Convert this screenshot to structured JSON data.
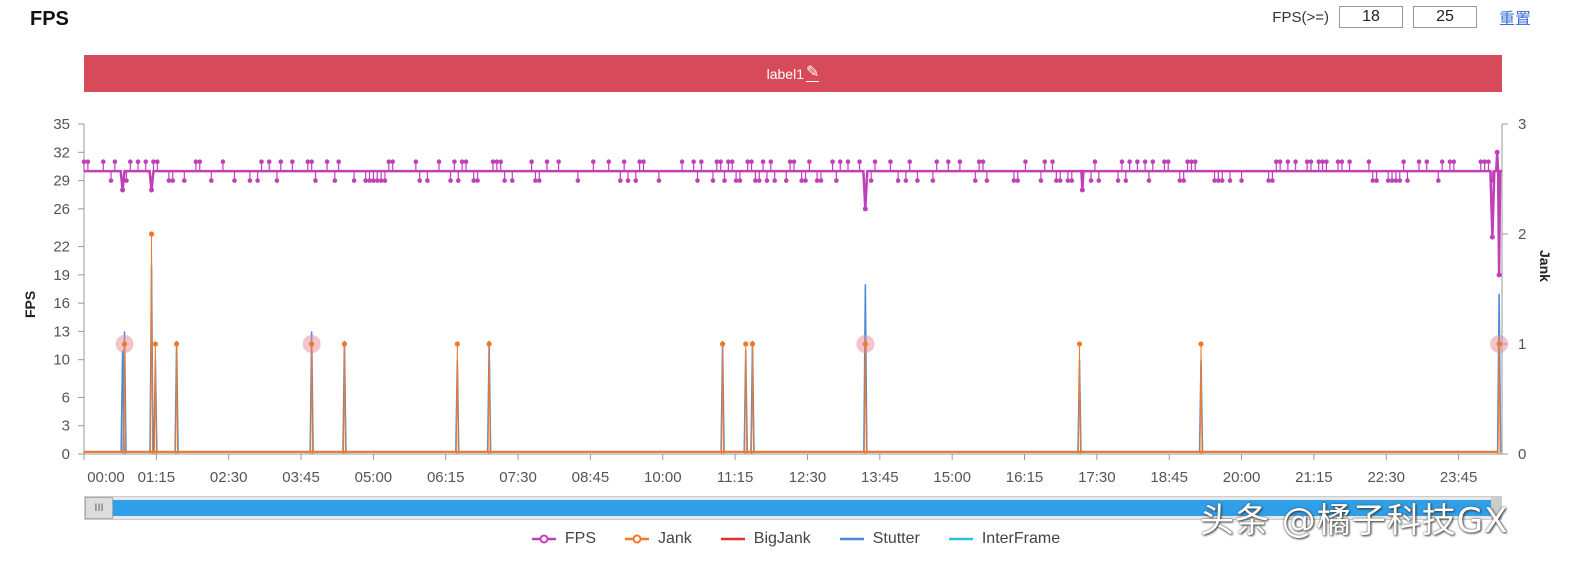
{
  "header": {
    "title": "FPS",
    "threshold_label": "FPS(>=)",
    "threshold_low": "18",
    "threshold_high": "25",
    "reset_label": "重置"
  },
  "label_bar": {
    "text": "label1",
    "color": "#d64a59",
    "icon": "pencil-icon"
  },
  "watermark": "头条 @橘子科技GX",
  "scroll_handle_glyph": "III",
  "chart_data": {
    "type": "line",
    "title": "FPS",
    "ylabel": "FPS",
    "y2label": "Jank",
    "ylim": [
      0,
      35
    ],
    "y2lim": [
      0,
      3
    ],
    "yticks": [
      0,
      3,
      6,
      10,
      13,
      16,
      19,
      22,
      26,
      29,
      32,
      35
    ],
    "y2ticks": [
      0,
      1,
      2,
      3
    ],
    "xlim_minutes": [
      0,
      1470
    ],
    "xtick_labels": [
      "00:00",
      "01:15",
      "02:30",
      "03:45",
      "05:00",
      "06:15",
      "07:30",
      "08:45",
      "10:00",
      "11:15",
      "12:30",
      "13:45",
      "15:00",
      "16:15",
      "17:30",
      "18:45",
      "20:00",
      "21:15",
      "22:30",
      "23:45"
    ],
    "legend": [
      "FPS",
      "Jank",
      "BigJank",
      "Stutter",
      "InterFrame"
    ],
    "colors": {
      "FPS": "#c040b8",
      "Jank": "#f07a2a",
      "BigJank": "#e03030",
      "Stutter": "#4a8ad8",
      "InterFrame": "#2ec0e0"
    },
    "fps_baseline": 30,
    "fps_dips": [
      {
        "t": 40,
        "fps": 28
      },
      {
        "t": 70,
        "fps": 28
      },
      {
        "t": 810,
        "fps": 26
      },
      {
        "t": 1035,
        "fps": 28
      },
      {
        "t": 1460,
        "fps": 23
      },
      {
        "t": 1465,
        "fps": 32
      },
      {
        "t": 1467,
        "fps": 19
      }
    ],
    "jank_events": [
      {
        "t": 42,
        "jank": 1
      },
      {
        "t": 70,
        "jank": 2
      },
      {
        "t": 74,
        "jank": 1
      },
      {
        "t": 96,
        "jank": 1
      },
      {
        "t": 236,
        "jank": 1
      },
      {
        "t": 270,
        "jank": 1
      },
      {
        "t": 387,
        "jank": 1
      },
      {
        "t": 420,
        "jank": 1
      },
      {
        "t": 662,
        "jank": 1
      },
      {
        "t": 686,
        "jank": 1
      },
      {
        "t": 693,
        "jank": 1
      },
      {
        "t": 810,
        "jank": 1
      },
      {
        "t": 1032,
        "jank": 1
      },
      {
        "t": 1158,
        "jank": 1
      },
      {
        "t": 1467,
        "jank": 1
      }
    ],
    "stutter_events": [
      {
        "t": 40,
        "value": 11
      },
      {
        "t": 42,
        "value": 13
      },
      {
        "t": 70,
        "value": 20
      },
      {
        "t": 74,
        "value": 10
      },
      {
        "t": 96,
        "value": 12
      },
      {
        "t": 236,
        "value": 13
      },
      {
        "t": 270,
        "value": 12
      },
      {
        "t": 387,
        "value": 10
      },
      {
        "t": 420,
        "value": 12
      },
      {
        "t": 662,
        "value": 12
      },
      {
        "t": 686,
        "value": 11
      },
      {
        "t": 693,
        "value": 12
      },
      {
        "t": 810,
        "value": 18
      },
      {
        "t": 1032,
        "value": 10
      },
      {
        "t": 1158,
        "value": 10
      },
      {
        "t": 1467,
        "value": 17
      }
    ],
    "highlighted_points": [
      42,
      236,
      810,
      1467
    ]
  }
}
